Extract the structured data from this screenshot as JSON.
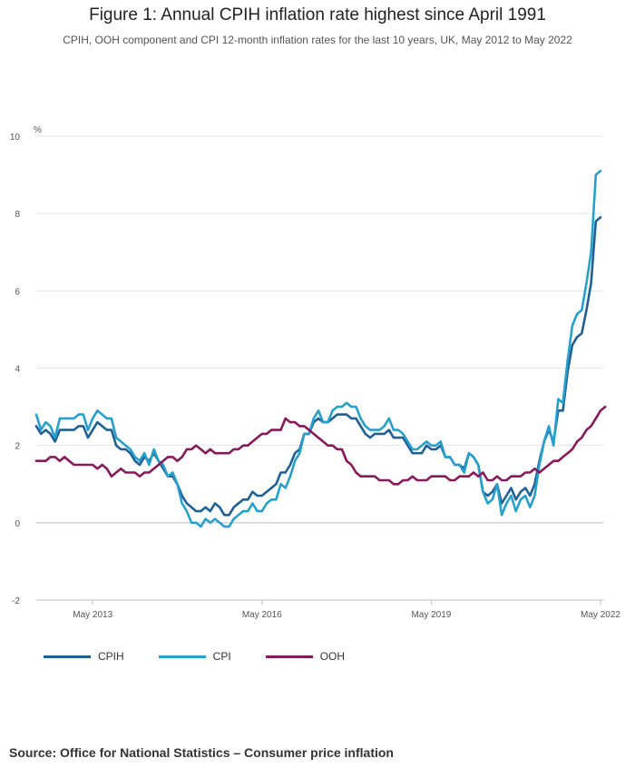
{
  "title": "Figure 1: Annual CPIH inflation rate highest since April 1991",
  "subtitle": "CPIH, OOH component and CPI 12-month inflation rates for the last 10 years, UK, May 2012 to May 2022",
  "source": "Source: Office for National Statistics – Consumer price inflation",
  "chart_data": {
    "type": "line",
    "title": "Figure 1: Annual CPIH inflation rate highest since April 1991",
    "ylabel": "%",
    "xlabel": "",
    "ylim": [
      -2,
      10
    ],
    "yticks": [
      -2,
      0,
      2,
      4,
      6,
      8,
      10
    ],
    "x_start": "May 2012",
    "x_end": "May 2022",
    "xticks": [
      {
        "label": "May 2013",
        "index": 12
      },
      {
        "label": "May 2016",
        "index": 48
      },
      {
        "label": "May 2019",
        "index": 84
      },
      {
        "label": "May 2022",
        "index": 120
      }
    ],
    "grid": true,
    "series": [
      {
        "name": "CPIH",
        "color": "#206095",
        "values": [
          2.5,
          2.3,
          2.4,
          2.3,
          2.1,
          2.4,
          2.4,
          2.4,
          2.4,
          2.5,
          2.5,
          2.2,
          2.4,
          2.6,
          2.5,
          2.4,
          2.4,
          2.0,
          1.9,
          1.9,
          1.8,
          1.6,
          1.5,
          1.7,
          1.6,
          1.8,
          1.6,
          1.4,
          1.2,
          1.2,
          1.0,
          0.7,
          0.5,
          0.4,
          0.3,
          0.3,
          0.4,
          0.3,
          0.5,
          0.4,
          0.2,
          0.2,
          0.4,
          0.5,
          0.6,
          0.6,
          0.8,
          0.7,
          0.7,
          0.8,
          0.9,
          1.0,
          1.3,
          1.3,
          1.5,
          1.8,
          1.9,
          2.3,
          2.3,
          2.6,
          2.7,
          2.6,
          2.6,
          2.7,
          2.8,
          2.8,
          2.8,
          2.7,
          2.7,
          2.5,
          2.3,
          2.2,
          2.3,
          2.3,
          2.3,
          2.4,
          2.2,
          2.2,
          2.2,
          2.0,
          1.8,
          1.8,
          1.8,
          2.0,
          1.9,
          1.9,
          2.0,
          1.7,
          1.7,
          1.5,
          1.5,
          1.4,
          1.8,
          1.7,
          1.5,
          0.8,
          0.7,
          0.8,
          1.0,
          0.5,
          0.7,
          0.9,
          0.6,
          0.8,
          0.9,
          0.7,
          1.0,
          1.6,
          2.1,
          2.4,
          2.1,
          2.9,
          2.9,
          3.9,
          4.6,
          4.8,
          4.9,
          5.5,
          6.2,
          7.8,
          7.9
        ]
      },
      {
        "name": "CPI",
        "color": "#27a0cc",
        "values": [
          2.8,
          2.4,
          2.6,
          2.5,
          2.2,
          2.7,
          2.7,
          2.7,
          2.7,
          2.8,
          2.8,
          2.4,
          2.7,
          2.9,
          2.8,
          2.7,
          2.7,
          2.2,
          2.1,
          2.0,
          1.9,
          1.7,
          1.6,
          1.8,
          1.5,
          1.9,
          1.6,
          1.5,
          1.2,
          1.3,
          1.0,
          0.5,
          0.3,
          0.0,
          0.0,
          -0.1,
          0.1,
          0.0,
          0.1,
          0.0,
          -0.1,
          -0.1,
          0.1,
          0.2,
          0.3,
          0.3,
          0.5,
          0.3,
          0.3,
          0.5,
          0.6,
          0.6,
          1.0,
          0.9,
          1.2,
          1.6,
          1.8,
          2.3,
          2.3,
          2.7,
          2.9,
          2.6,
          2.6,
          2.9,
          3.0,
          3.0,
          3.1,
          3.0,
          3.0,
          2.7,
          2.5,
          2.4,
          2.4,
          2.4,
          2.5,
          2.7,
          2.4,
          2.4,
          2.3,
          2.1,
          1.9,
          1.9,
          2.0,
          2.1,
          2.0,
          2.0,
          2.1,
          1.7,
          1.7,
          1.5,
          1.5,
          1.3,
          1.8,
          1.7,
          1.5,
          0.8,
          0.5,
          0.6,
          1.0,
          0.2,
          0.5,
          0.7,
          0.3,
          0.6,
          0.7,
          0.4,
          0.7,
          1.5,
          2.1,
          2.5,
          2.0,
          3.2,
          3.1,
          4.2,
          5.1,
          5.4,
          5.5,
          6.2,
          7.0,
          9.0,
          9.1
        ]
      },
      {
        "name": "OOH",
        "color": "#871a5b",
        "values": [
          1.6,
          1.6,
          1.6,
          1.7,
          1.7,
          1.6,
          1.7,
          1.6,
          1.5,
          1.5,
          1.5,
          1.5,
          1.5,
          1.4,
          1.5,
          1.4,
          1.2,
          1.3,
          1.4,
          1.3,
          1.3,
          1.3,
          1.2,
          1.3,
          1.3,
          1.4,
          1.5,
          1.6,
          1.7,
          1.7,
          1.6,
          1.7,
          1.9,
          1.9,
          2.0,
          1.9,
          1.8,
          1.9,
          1.8,
          1.8,
          1.8,
          1.8,
          1.9,
          1.9,
          2.0,
          2.0,
          2.1,
          2.2,
          2.3,
          2.3,
          2.4,
          2.4,
          2.4,
          2.7,
          2.6,
          2.6,
          2.5,
          2.5,
          2.4,
          2.3,
          2.2,
          2.1,
          2.0,
          2.0,
          1.9,
          1.9,
          1.6,
          1.5,
          1.3,
          1.2,
          1.2,
          1.2,
          1.2,
          1.1,
          1.1,
          1.1,
          1.0,
          1.0,
          1.1,
          1.1,
          1.2,
          1.1,
          1.1,
          1.1,
          1.2,
          1.2,
          1.2,
          1.2,
          1.1,
          1.1,
          1.2,
          1.2,
          1.2,
          1.3,
          1.2,
          1.3,
          1.1,
          1.1,
          1.2,
          1.1,
          1.1,
          1.2,
          1.2,
          1.2,
          1.3,
          1.3,
          1.4,
          1.3,
          1.4,
          1.5,
          1.6,
          1.6,
          1.7,
          1.8,
          1.9,
          2.1,
          2.2,
          2.4,
          2.5,
          2.7,
          2.9,
          3.0
        ]
      }
    ]
  }
}
